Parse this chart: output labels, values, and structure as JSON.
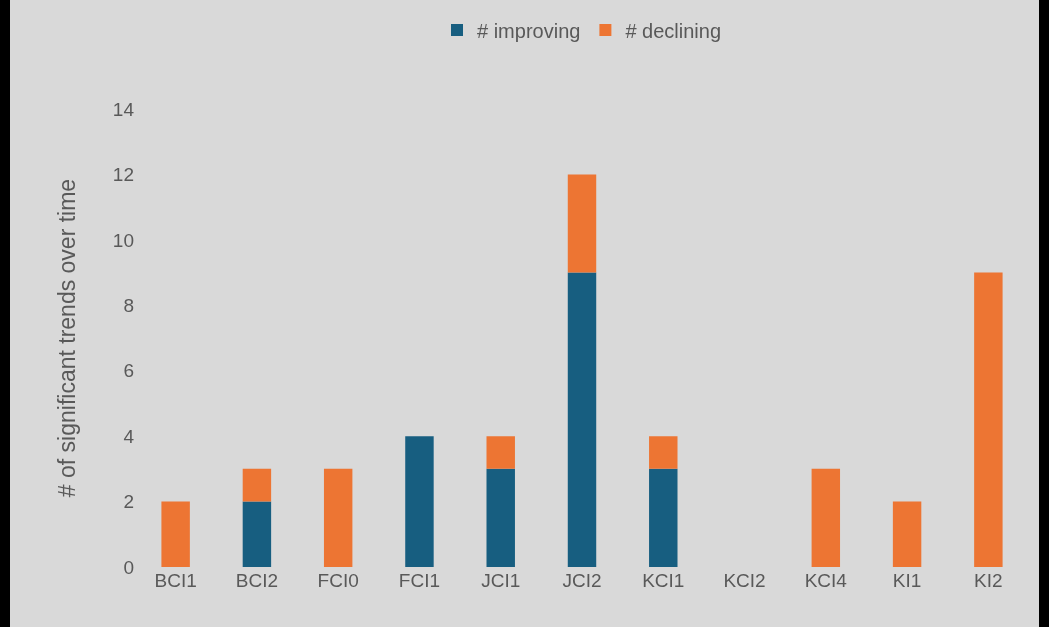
{
  "chart_data": {
    "type": "bar",
    "stacked": true,
    "ylabel": "# of significant trends over time",
    "categories": [
      "BCI1",
      "BCI2",
      "FCI0",
      "FCI1",
      "JCI1",
      "JCI2",
      "KCI1",
      "KCI2",
      "KCI4",
      "KI1",
      "KI2"
    ],
    "series": [
      {
        "name": "# improving",
        "color": "#175e80",
        "values": [
          0,
          2,
          0,
          4,
          3,
          9,
          3,
          0,
          0,
          0,
          0
        ]
      },
      {
        "name": "# declining",
        "color": "#ed7533",
        "values": [
          2,
          1,
          3,
          0,
          1,
          3,
          1,
          0,
          3,
          2,
          9
        ]
      }
    ],
    "ylim": [
      0,
      14
    ],
    "yticks": [
      0,
      2,
      4,
      6,
      8,
      10,
      12,
      14
    ],
    "grid": false,
    "legend": "top"
  }
}
